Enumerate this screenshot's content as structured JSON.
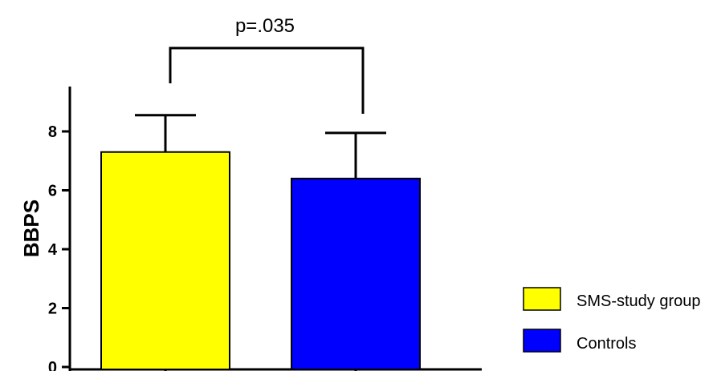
{
  "chart_data": {
    "type": "bar",
    "categories": [
      "SMS-study group",
      "Controls"
    ],
    "values": [
      7.3,
      6.4
    ],
    "errors": [
      1.25,
      1.55
    ],
    "colors": [
      "#ffff00",
      "#0000ff"
    ],
    "ylabel": "BBPS",
    "ylim": [
      0,
      9.5
    ],
    "yticks": [
      "0",
      "2",
      "4",
      "6",
      "8"
    ],
    "annotation": "p=.035",
    "legend": [
      {
        "label": "SMS-study group",
        "color": "#ffff00"
      },
      {
        "label": "Controls",
        "color": "#0000ff"
      }
    ],
    "legend_position": "bottom-right",
    "grid": false
  }
}
